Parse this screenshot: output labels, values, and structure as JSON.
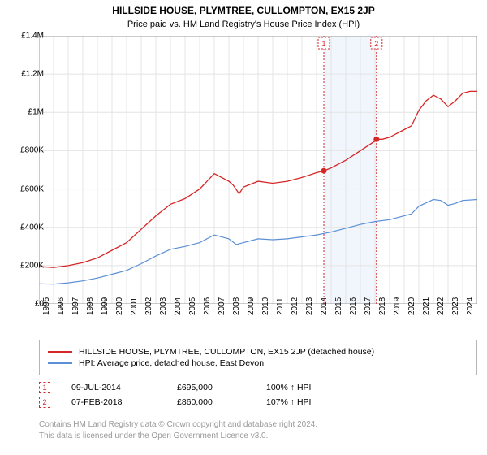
{
  "title": "HILLSIDE HOUSE, PLYMTREE, CULLOMPTON, EX15 2JP",
  "subtitle": "Price paid vs. HM Land Registry's House Price Index (HPI)",
  "chart": {
    "type": "line",
    "background_color": "#ffffff",
    "grid_color": "#e4e4e4",
    "axis_color": "#999999",
    "xlim": [
      1995,
      2025
    ],
    "ylim": [
      0,
      1400000
    ],
    "ytick_step": 200000,
    "ytick_labels": [
      "£0",
      "£200K",
      "£400K",
      "£600K",
      "£800K",
      "£1M",
      "£1.2M",
      "£1.4M"
    ],
    "xtick_step": 1,
    "xticks": [
      1995,
      1996,
      1997,
      1998,
      1999,
      2000,
      2001,
      2002,
      2003,
      2004,
      2005,
      2006,
      2007,
      2008,
      2009,
      2010,
      2011,
      2012,
      2013,
      2014,
      2015,
      2016,
      2017,
      2018,
      2019,
      2020,
      2021,
      2022,
      2023,
      2024
    ],
    "shade_ranges": [
      {
        "x0": 2014.5,
        "x1": 2018.1,
        "fill": "#e8f0fb"
      }
    ],
    "event_markers": [
      {
        "label": "1",
        "x": 2014.5,
        "y": 695000,
        "line_color": "#d62728",
        "box_border": "#d62728"
      },
      {
        "label": "2",
        "x": 2018.1,
        "y": 860000,
        "line_color": "#d62728",
        "box_border": "#d62728"
      }
    ],
    "dot_color": "#d62728",
    "dot_radius": 3.5,
    "series": [
      {
        "name": "HILLSIDE HOUSE, PLYMTREE, CULLOMPTON, EX15 2JP (detached house)",
        "color": "#d62728",
        "line_width": 1.3,
        "points": [
          [
            1995,
            195000
          ],
          [
            1996,
            190000
          ],
          [
            1997,
            200000
          ],
          [
            1998,
            215000
          ],
          [
            1999,
            240000
          ],
          [
            2000,
            280000
          ],
          [
            2001,
            320000
          ],
          [
            2002,
            390000
          ],
          [
            2003,
            460000
          ],
          [
            2004,
            520000
          ],
          [
            2005,
            550000
          ],
          [
            2006,
            600000
          ],
          [
            2007,
            680000
          ],
          [
            2008,
            640000
          ],
          [
            2008.3,
            620000
          ],
          [
            2008.7,
            575000
          ],
          [
            2009,
            610000
          ],
          [
            2010,
            640000
          ],
          [
            2011,
            630000
          ],
          [
            2012,
            640000
          ],
          [
            2013,
            660000
          ],
          [
            2014,
            685000
          ],
          [
            2014.5,
            695000
          ],
          [
            2015,
            710000
          ],
          [
            2016,
            750000
          ],
          [
            2017,
            800000
          ],
          [
            2018,
            850000
          ],
          [
            2018.1,
            860000
          ],
          [
            2018.5,
            860000
          ],
          [
            2019,
            870000
          ],
          [
            2020,
            910000
          ],
          [
            2020.5,
            930000
          ],
          [
            2021,
            1010000
          ],
          [
            2021.5,
            1060000
          ],
          [
            2022,
            1090000
          ],
          [
            2022.5,
            1070000
          ],
          [
            2023,
            1030000
          ],
          [
            2023.5,
            1060000
          ],
          [
            2024,
            1100000
          ],
          [
            2024.5,
            1110000
          ],
          [
            2025,
            1110000
          ]
        ]
      },
      {
        "name": "HPI: Average price, detached house, East Devon",
        "color": "#5b8fd6",
        "line_width": 1.2,
        "points": [
          [
            1995,
            105000
          ],
          [
            1996,
            103000
          ],
          [
            1997,
            110000
          ],
          [
            1998,
            120000
          ],
          [
            1999,
            135000
          ],
          [
            2000,
            155000
          ],
          [
            2001,
            175000
          ],
          [
            2002,
            210000
          ],
          [
            2003,
            250000
          ],
          [
            2004,
            285000
          ],
          [
            2005,
            300000
          ],
          [
            2006,
            320000
          ],
          [
            2007,
            360000
          ],
          [
            2008,
            340000
          ],
          [
            2008.5,
            310000
          ],
          [
            2009,
            320000
          ],
          [
            2010,
            340000
          ],
          [
            2011,
            335000
          ],
          [
            2012,
            340000
          ],
          [
            2013,
            350000
          ],
          [
            2014,
            360000
          ],
          [
            2015,
            375000
          ],
          [
            2016,
            395000
          ],
          [
            2017,
            415000
          ],
          [
            2018,
            430000
          ],
          [
            2019,
            440000
          ],
          [
            2020,
            460000
          ],
          [
            2020.5,
            470000
          ],
          [
            2021,
            510000
          ],
          [
            2022,
            545000
          ],
          [
            2022.5,
            540000
          ],
          [
            2023,
            515000
          ],
          [
            2023.5,
            525000
          ],
          [
            2024,
            540000
          ],
          [
            2025,
            545000
          ]
        ]
      }
    ]
  },
  "legend": {
    "items": [
      {
        "color": "#d62728",
        "label": "HILLSIDE HOUSE, PLYMTREE, CULLOMPTON, EX15 2JP (detached house)"
      },
      {
        "color": "#5b8fd6",
        "label": "HPI: Average price, detached house, East Devon"
      }
    ]
  },
  "events": [
    {
      "marker": "1",
      "date": "09-JUL-2014",
      "price": "£695,000",
      "pct": "100% ↑ HPI",
      "color": "#d62728"
    },
    {
      "marker": "2",
      "date": "07-FEB-2018",
      "price": "£860,000",
      "pct": "107% ↑ HPI",
      "color": "#d62728"
    }
  ],
  "footer": {
    "line1": "Contains HM Land Registry data © Crown copyright and database right 2024.",
    "line2": "This data is licensed under the Open Government Licence v3.0."
  },
  "label_fontsize": 10
}
